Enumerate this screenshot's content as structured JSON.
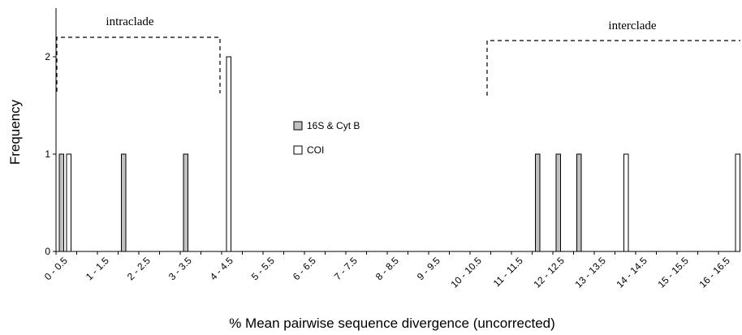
{
  "chart_data": {
    "type": "bar",
    "xlabel": "% Mean pairwise sequence divergence (uncorrected)",
    "ylabel": "Frequency",
    "ylim": [
      0,
      2
    ],
    "yticks": [
      0,
      1,
      2
    ],
    "grid": false,
    "categories": [
      "0 - 0.5",
      "0.5 - 1",
      "1 - 1.5",
      "1.5 - 2",
      "2 - 2.5",
      "2.5 - 3",
      "3 - 3.5",
      "3.5 - 4",
      "4 - 4.5",
      "4.5 - 5",
      "5 - 5.5",
      "5.5 - 6",
      "6 - 6.5",
      "6.5 - 7",
      "7 - 7.5",
      "7.5 - 8",
      "8 - 8.5",
      "8.5 - 9",
      "9 - 9.5",
      "9.5 - 10",
      "10 - 10.5",
      "10.5 - 11",
      "11 - 11.5",
      "11.5 - 12",
      "12 - 12.5",
      "12.5 - 13",
      "13 - 13.5",
      "13.5 - 14",
      "14 - 14.5",
      "14.5 - 15",
      "15 - 15.5",
      "15.5 - 16",
      "16 - 16.5",
      "16.5 - 17"
    ],
    "visible_tick_labels": [
      "0 - 0.5",
      "1 - 1.5",
      "2 - 2.5",
      "3 - 3.5",
      "4 - 4.5",
      "5 - 5.5",
      "6 - 6.5",
      "7 - 7.5",
      "8 - 8.5",
      "9 - 9.5",
      "10 - 10.5",
      "11 - 11.5",
      "12 - 12.5",
      "13 - 13.5",
      "14 - 14.5",
      "15 - 15.5",
      "16 - 16.5"
    ],
    "legend_position": "center",
    "series": [
      {
        "name": "16S & Cyt B",
        "color": "#c0c0c0",
        "values": [
          1,
          0,
          0,
          1,
          0,
          0,
          1,
          0,
          0,
          0,
          0,
          0,
          0,
          0,
          0,
          0,
          0,
          0,
          0,
          0,
          0,
          0,
          0,
          1,
          1,
          1,
          0,
          0,
          0,
          0,
          0,
          0,
          0,
          0
        ]
      },
      {
        "name": "COI",
        "color": "#ffffff",
        "values": [
          1,
          0,
          0,
          0,
          0,
          0,
          0,
          0,
          2,
          0,
          0,
          0,
          0,
          0,
          0,
          0,
          0,
          0,
          0,
          0,
          0,
          0,
          0,
          0,
          0,
          0,
          0,
          1,
          0,
          0,
          0,
          0,
          0,
          1
        ]
      }
    ],
    "extra_bars": [
      {
        "series": "COI",
        "value": 1,
        "note": "bar at the right edge of the axis"
      }
    ],
    "annotations": [
      {
        "label": "intraclade",
        "from": "0 - 0.5",
        "to": "4 - 4.5"
      },
      {
        "label": "interclade",
        "from": "10.5 - 11",
        "to": "16.5 - 17"
      }
    ]
  }
}
